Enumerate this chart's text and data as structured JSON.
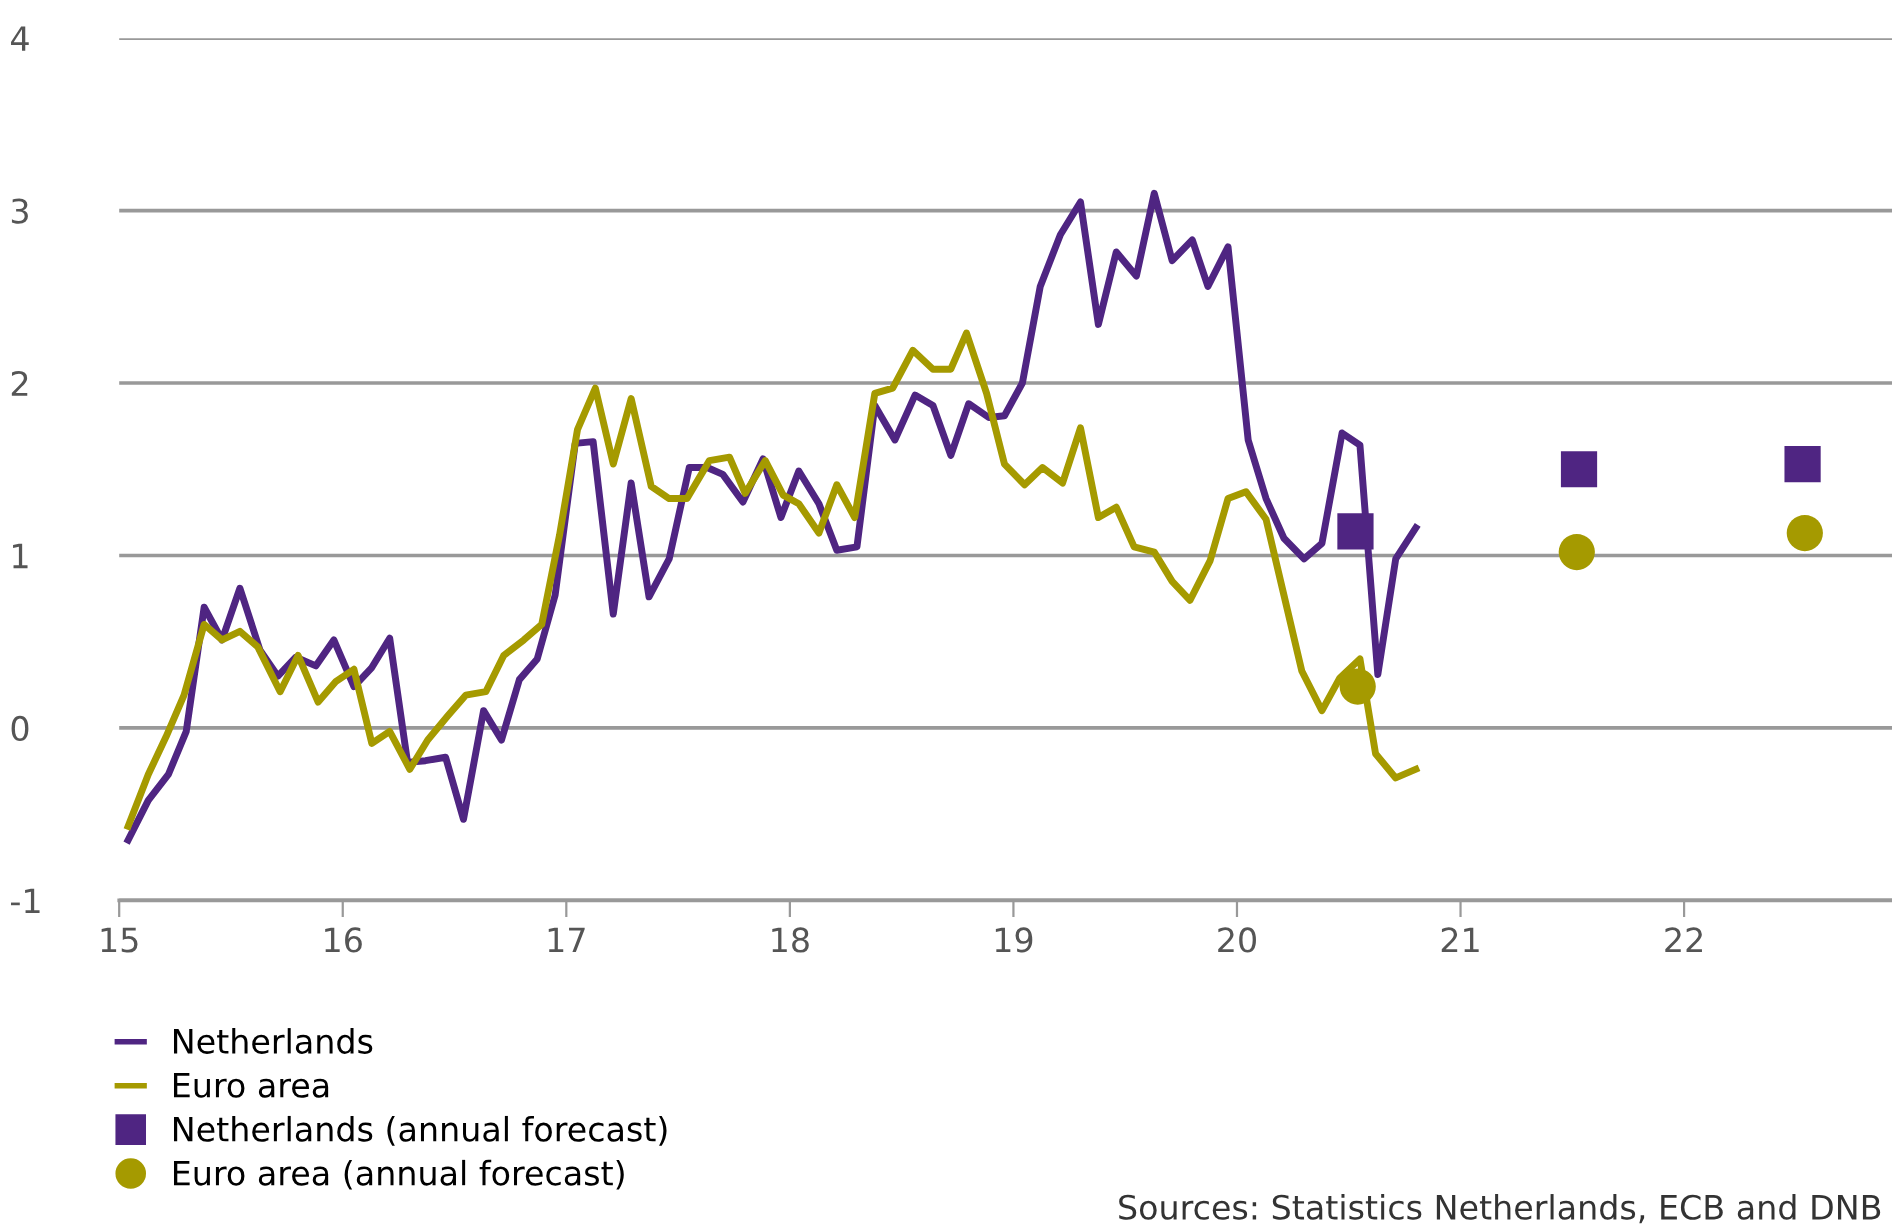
{
  "chart_data": {
    "type": "line",
    "xlim": [
      15,
      22.93
    ],
    "ylim": [
      -1,
      4
    ],
    "xticks": [
      15,
      16,
      17,
      18,
      19,
      20,
      21,
      22
    ],
    "yticks": [
      -1,
      0,
      1,
      2,
      3,
      4
    ],
    "grid": "y",
    "legend": "bottom",
    "marker": "none",
    "line_style": "solid",
    "annotations": [
      "Sources: Statistics Netherlands, ECB and DNB"
    ],
    "series": [
      {
        "name": "Netherlands",
        "color": "#4f2582",
        "x": [
          15.04,
          15.13,
          15.22,
          15.3,
          15.38,
          15.46,
          15.54,
          15.63,
          15.71,
          15.79,
          15.88,
          15.96,
          16.05,
          16.13,
          16.21,
          16.29,
          16.37,
          16.46,
          16.54,
          16.63,
          16.71,
          16.79,
          16.87,
          16.95,
          17.04,
          17.12,
          17.21,
          17.29,
          17.37,
          17.46,
          17.55,
          17.63,
          17.7,
          17.79,
          17.88,
          17.96,
          18.04,
          18.13,
          18.21,
          18.3,
          18.38,
          18.47,
          18.56,
          18.64,
          18.72,
          18.8,
          18.89,
          18.96,
          19.04,
          19.12,
          19.21,
          19.3,
          19.38,
          19.46,
          19.55,
          19.63,
          19.71,
          19.8,
          19.87,
          19.96,
          20.05,
          20.13,
          20.21,
          20.3,
          20.38,
          20.47,
          20.55,
          20.63,
          20.71,
          20.8
        ],
        "values": [
          -0.65,
          -0.42,
          -0.27,
          -0.02,
          0.7,
          0.51,
          0.81,
          0.45,
          0.3,
          0.41,
          0.36,
          0.51,
          0.24,
          0.35,
          0.52,
          -0.2,
          -0.19,
          -0.17,
          -0.53,
          0.1,
          -0.07,
          0.28,
          0.4,
          0.77,
          1.65,
          1.66,
          0.66,
          1.42,
          0.76,
          0.98,
          1.51,
          1.51,
          1.47,
          1.31,
          1.56,
          1.22,
          1.49,
          1.3,
          1.03,
          1.05,
          1.87,
          1.67,
          1.93,
          1.87,
          1.58,
          1.88,
          1.8,
          1.81,
          2.0,
          2.56,
          2.86,
          3.05,
          2.34,
          2.76,
          2.62,
          3.1,
          2.71,
          2.83,
          2.56,
          2.79,
          1.67,
          1.33,
          1.1,
          0.98,
          1.07,
          1.71,
          1.64,
          0.31,
          0.98,
          1.16
        ]
      },
      {
        "name": "Euro area",
        "color": "#a59a00",
        "x": [
          15.04,
          15.13,
          15.21,
          15.29,
          15.38,
          15.46,
          15.54,
          15.62,
          15.72,
          15.8,
          15.89,
          15.97,
          16.05,
          16.13,
          16.21,
          16.3,
          16.38,
          16.47,
          16.55,
          16.64,
          16.72,
          16.81,
          16.89,
          16.97,
          17.05,
          17.13,
          17.21,
          17.29,
          17.38,
          17.46,
          17.54,
          17.64,
          17.73,
          17.8,
          17.89,
          17.97,
          18.04,
          18.13,
          18.21,
          18.29,
          18.38,
          18.46,
          18.55,
          18.64,
          18.72,
          18.79,
          18.88,
          18.96,
          19.05,
          19.13,
          19.22,
          19.3,
          19.38,
          19.46,
          19.54,
          19.63,
          19.71,
          19.79,
          19.88,
          19.96,
          20.04,
          20.13,
          20.21,
          20.29,
          20.38,
          20.46,
          20.55,
          20.62,
          20.71,
          20.8
        ],
        "values": [
          -0.57,
          -0.27,
          -0.05,
          0.19,
          0.6,
          0.51,
          0.56,
          0.47,
          0.21,
          0.42,
          0.15,
          0.27,
          0.34,
          -0.09,
          -0.02,
          -0.24,
          -0.07,
          0.07,
          0.19,
          0.21,
          0.42,
          0.51,
          0.6,
          1.12,
          1.73,
          1.97,
          1.53,
          1.91,
          1.4,
          1.33,
          1.33,
          1.55,
          1.57,
          1.36,
          1.55,
          1.35,
          1.3,
          1.13,
          1.41,
          1.22,
          1.94,
          1.97,
          2.19,
          2.08,
          2.08,
          2.29,
          1.94,
          1.53,
          1.41,
          1.51,
          1.42,
          1.74,
          1.22,
          1.28,
          1.05,
          1.02,
          0.85,
          0.74,
          0.97,
          1.33,
          1.37,
          1.21,
          0.77,
          0.33,
          0.1,
          0.29,
          0.4,
          -0.15,
          -0.29,
          -0.24
        ]
      },
      {
        "name": "Netherlands (annual forecast)",
        "type": "scatter",
        "marker": "square",
        "color": "#4f2582",
        "x": [
          20.53,
          21.53,
          22.53
        ],
        "values": [
          1.14,
          1.5,
          1.53
        ]
      },
      {
        "name": "Euro area (annual forecast)",
        "type": "scatter",
        "marker": "circle",
        "color": "#a59a00",
        "x": [
          20.54,
          21.52,
          22.54
        ],
        "values": [
          0.24,
          1.02,
          1.13
        ]
      }
    ]
  }
}
